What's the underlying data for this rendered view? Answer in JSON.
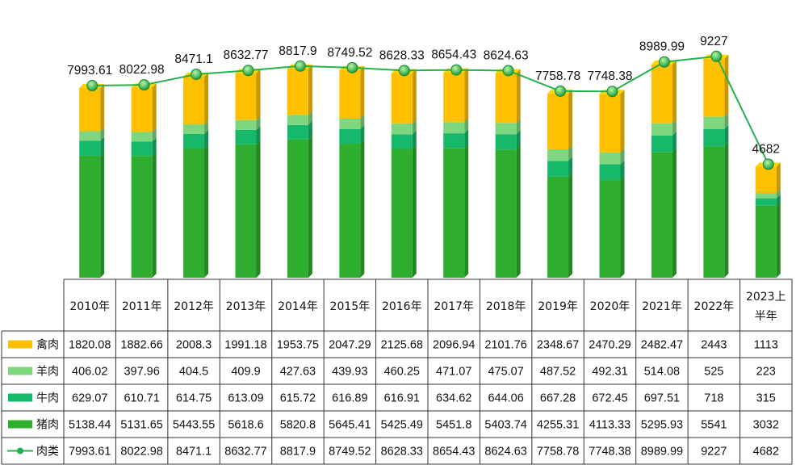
{
  "chart_data": {
    "type": "bar",
    "stacked": true,
    "categories": [
      "2010年",
      "2011年",
      "2012年",
      "2013年",
      "2014年",
      "2015年",
      "2016年",
      "2017年",
      "2018年",
      "2019年",
      "2020年",
      "2021年",
      "2022年",
      "2023上半年"
    ],
    "series": [
      {
        "name": "猪肉",
        "color": "#2EAD2E",
        "values": [
          5138.44,
          5131.65,
          5443.55,
          5618.6,
          5820.8,
          5645.41,
          5425.49,
          5451.8,
          5403.74,
          4255.31,
          4113.33,
          5295.93,
          5541,
          3032
        ]
      },
      {
        "name": "牛肉",
        "color": "#16B86A",
        "values": [
          629.07,
          610.71,
          614.75,
          613.09,
          615.72,
          616.89,
          616.91,
          634.62,
          644.06,
          667.28,
          672.45,
          697.51,
          718,
          315
        ]
      },
      {
        "name": "羊肉",
        "color": "#7ED67E",
        "values": [
          406.02,
          397.96,
          404.5,
          409.9,
          427.63,
          439.93,
          460.25,
          471.07,
          475.07,
          487.52,
          492.31,
          514.08,
          525,
          223
        ]
      },
      {
        "name": "禽肉",
        "color": "#FFC000",
        "values": [
          1820.08,
          1882.66,
          2008.3,
          1991.18,
          1953.75,
          2047.29,
          2125.68,
          2096.94,
          2101.76,
          2348.67,
          2470.29,
          2482.47,
          2443,
          1113
        ]
      }
    ],
    "line": {
      "name": "肉类",
      "color": "#22B14C",
      "values": [
        7993.61,
        8022.98,
        8471.1,
        8632.77,
        8817.9,
        8749.52,
        8628.33,
        8654.43,
        8624.63,
        7758.78,
        7748.38,
        8989.99,
        9227,
        4682
      ]
    },
    "table_row_order": [
      "禽肉",
      "羊肉",
      "牛肉",
      "猪肉",
      "肉类"
    ],
    "ylim": [
      0,
      10000
    ],
    "grid": false,
    "legend": "data-table",
    "data_labels": "line values above markers"
  }
}
